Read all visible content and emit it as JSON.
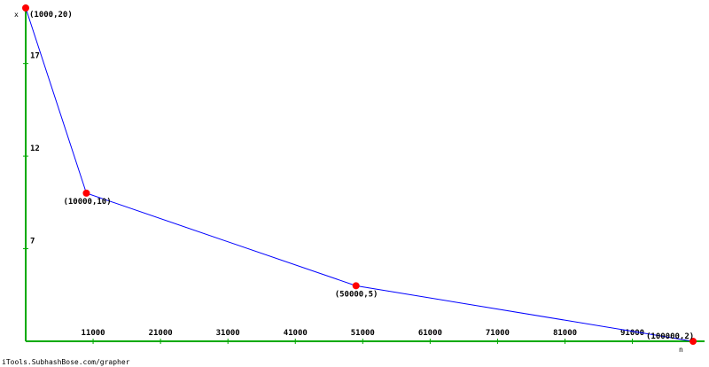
{
  "chart_data": {
    "type": "line",
    "title": "",
    "xlabel": "n",
    "ylabel": "x",
    "x": [
      1000,
      10000,
      50000,
      100000
    ],
    "series": [
      {
        "values": [
          20,
          10,
          5,
          2
        ]
      }
    ],
    "point_labels": [
      "(1000,20)",
      "(10000,10)",
      "(50000,5)",
      "(100000,2)"
    ],
    "x_ticks": [
      11000,
      21000,
      31000,
      41000,
      51000,
      61000,
      71000,
      81000,
      91000
    ],
    "y_ticks": [
      7,
      12,
      17
    ],
    "xlim": [
      1000,
      100000
    ],
    "ylim": [
      2,
      20
    ],
    "grid": false,
    "colors": {
      "axis": "#00aa00",
      "line": "#0000ff",
      "point": "#ff0000"
    }
  },
  "credit": "iTools.SubhashBose.com/grapher"
}
